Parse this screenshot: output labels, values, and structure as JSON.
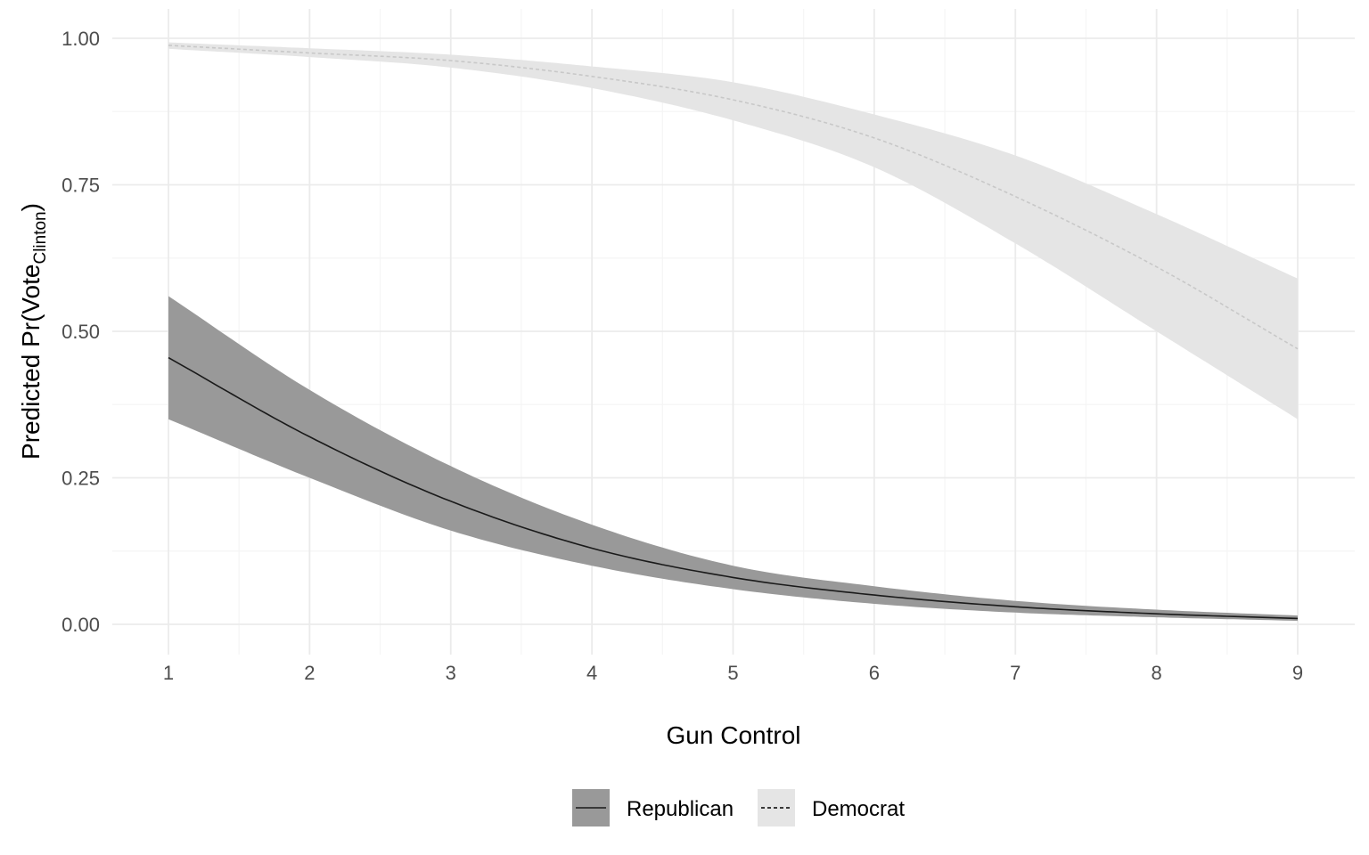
{
  "chart_data": {
    "type": "line",
    "title": "",
    "xlabel": "Gun Control",
    "ylabel": {
      "prefix": "Predicted Pr(Vote",
      "subscript": "Clinton",
      "suffix": ")"
    },
    "xlim": [
      0.6,
      9.4
    ],
    "ylim": [
      -0.05,
      1.04
    ],
    "x_ticks": [
      1,
      2,
      3,
      4,
      5,
      6,
      7,
      8,
      9
    ],
    "x_tick_labels": [
      "1",
      "2",
      "3",
      "4",
      "5",
      "6",
      "7",
      "8",
      "9"
    ],
    "y_ticks": [
      0,
      0.25,
      0.5,
      0.75,
      1.0
    ],
    "y_tick_labels": [
      "0.00",
      "0.25",
      "0.50",
      "0.75",
      "1.00"
    ],
    "grid": true,
    "legend_position": "bottom",
    "x": [
      1,
      2,
      3,
      4,
      5,
      6,
      7,
      8,
      9
    ],
    "series": [
      {
        "name": "Republican",
        "line_style": "solid",
        "line_color": "#1a1a1a",
        "ribbon_color": "#999999",
        "values": [
          0.455,
          0.32,
          0.21,
          0.13,
          0.08,
          0.05,
          0.03,
          0.018,
          0.01
        ],
        "lower": [
          0.35,
          0.25,
          0.16,
          0.1,
          0.06,
          0.035,
          0.02,
          0.012,
          0.006
        ],
        "upper": [
          0.56,
          0.4,
          0.27,
          0.17,
          0.1,
          0.065,
          0.04,
          0.025,
          0.015
        ]
      },
      {
        "name": "Democrat",
        "line_style": "dashed",
        "line_color": "#c8c8c8",
        "ribbon_color": "#e5e5e5",
        "values": [
          0.988,
          0.975,
          0.962,
          0.935,
          0.895,
          0.83,
          0.73,
          0.61,
          0.47
        ],
        "lower": [
          0.982,
          0.968,
          0.95,
          0.915,
          0.86,
          0.78,
          0.65,
          0.5,
          0.35
        ],
        "upper": [
          0.993,
          0.983,
          0.972,
          0.952,
          0.925,
          0.87,
          0.8,
          0.7,
          0.59
        ]
      }
    ]
  },
  "colors": {
    "background": "#ffffff",
    "grid_major": "#ebebeb",
    "grid_minor": "#f5f5f5",
    "tick_text": "#4d4d4d",
    "title_text": "#000000"
  }
}
